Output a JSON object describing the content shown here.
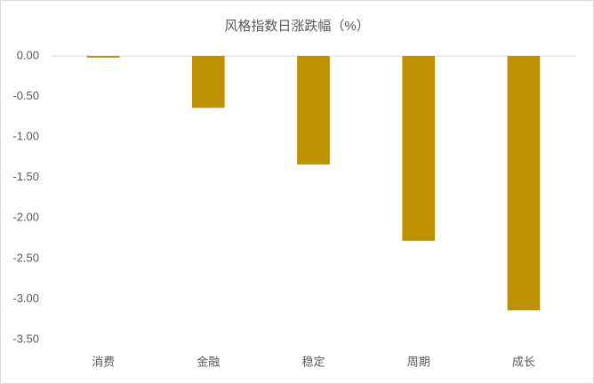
{
  "chart_data": {
    "type": "bar",
    "title": "风格指数日涨跌幅（%）",
    "categories": [
      "消费",
      "金融",
      "稳定",
      "周期",
      "成长"
    ],
    "values": [
      -0.02,
      -0.64,
      -1.34,
      -2.28,
      -3.14
    ],
    "color": "#bf9000",
    "ylim": [
      -3.5,
      0
    ],
    "yticks": [
      {
        "value": 0,
        "label": "0.00"
      },
      {
        "value": -0.5,
        "label": "-0.50"
      },
      {
        "value": -1,
        "label": "-1.00"
      },
      {
        "value": -1.5,
        "label": "-1.50"
      },
      {
        "value": -2,
        "label": "-2.00"
      },
      {
        "value": -2.5,
        "label": "-2.50"
      },
      {
        "value": -3,
        "label": "-3.00"
      },
      {
        "value": -3.5,
        "label": "-3.50"
      }
    ],
    "grid": false
  }
}
